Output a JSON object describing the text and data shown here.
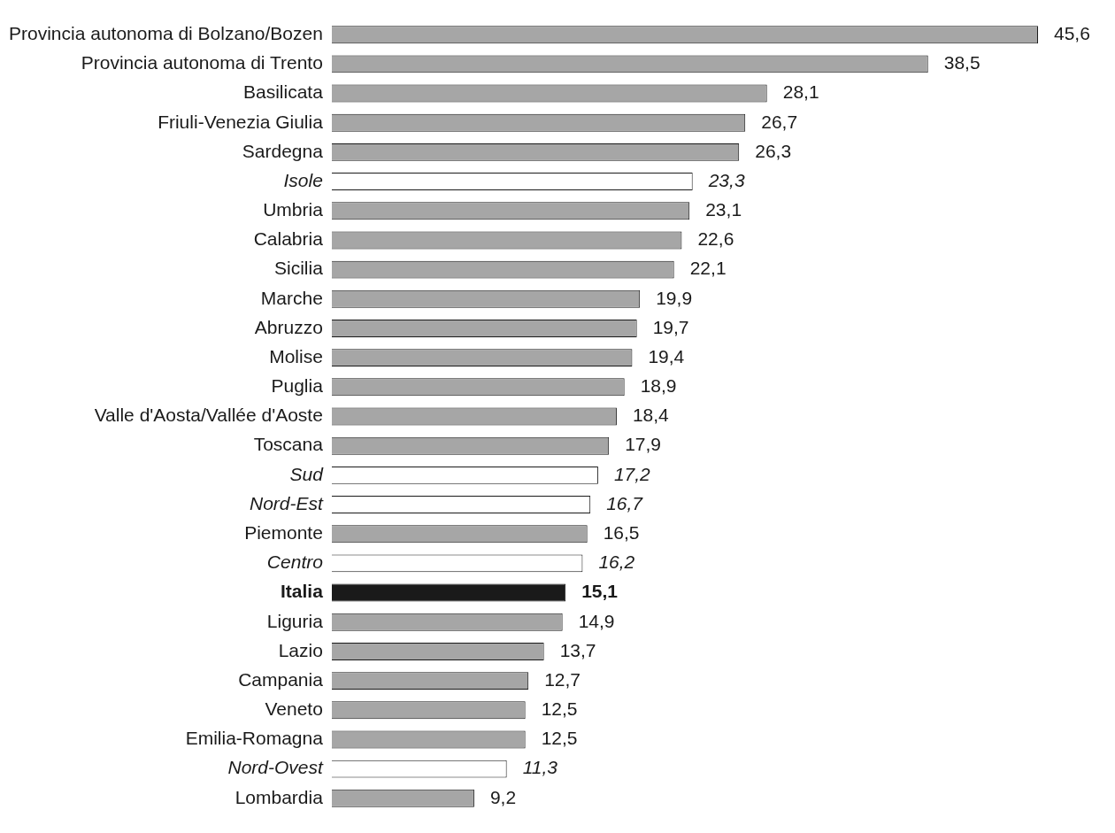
{
  "chart_data": {
    "type": "bar",
    "orientation": "horizontal",
    "tick_labels": "y",
    "categories": [
      "Provincia autonoma di Bolzano/Bozen",
      "Provincia autonoma di Trento",
      "Basilicata",
      "Friuli-Venezia Giulia",
      "Sardegna",
      "Isole",
      "Umbria",
      "Calabria",
      "Sicilia",
      "Marche",
      "Abruzzo",
      "Molise",
      "Puglia",
      "Valle d'Aosta/Vallée d'Aoste",
      "Toscana",
      "Sud",
      "Nord-Est",
      "Piemonte",
      "Centro",
      "Italia",
      "Liguria",
      "Lazio",
      "Campania",
      "Veneto",
      "Emilia-Romagna",
      "Nord-Ovest",
      "Lombardia"
    ],
    "values": [
      45.6,
      38.5,
      28.1,
      26.7,
      26.3,
      23.3,
      23.1,
      22.6,
      22.1,
      19.9,
      19.7,
      19.4,
      18.9,
      18.4,
      17.9,
      17.2,
      16.7,
      16.5,
      16.2,
      15.1,
      14.9,
      13.7,
      12.7,
      12.5,
      12.5,
      11.3,
      9.2
    ],
    "value_labels": [
      "45,6",
      "38,5",
      "28,1",
      "26,7",
      "26,3",
      "23,3",
      "23,1",
      "22,6",
      "22,1",
      "19,9",
      "19,7",
      "19,4",
      "18,9",
      "18,4",
      "17,9",
      "17,2",
      "16,7",
      "16,5",
      "16,2",
      "15,1",
      "14,9",
      "13,7",
      "12,7",
      "12,5",
      "12,5",
      "11,3",
      "9,2"
    ],
    "colors": [
      "#a6a6a6",
      "#a6a6a6",
      "#a6a6a6",
      "#a6a6a6",
      "#a6a6a6",
      "#ffffff",
      "#a6a6a6",
      "#a6a6a6",
      "#a6a6a6",
      "#a6a6a6",
      "#a6a6a6",
      "#a6a6a6",
      "#a6a6a6",
      "#a6a6a6",
      "#a6a6a6",
      "#ffffff",
      "#ffffff",
      "#a6a6a6",
      "#ffffff",
      "#1a1a1a",
      "#a6a6a6",
      "#a6a6a6",
      "#a6a6a6",
      "#a6a6a6",
      "#a6a6a6",
      "#ffffff",
      "#a6a6a6"
    ]
  }
}
